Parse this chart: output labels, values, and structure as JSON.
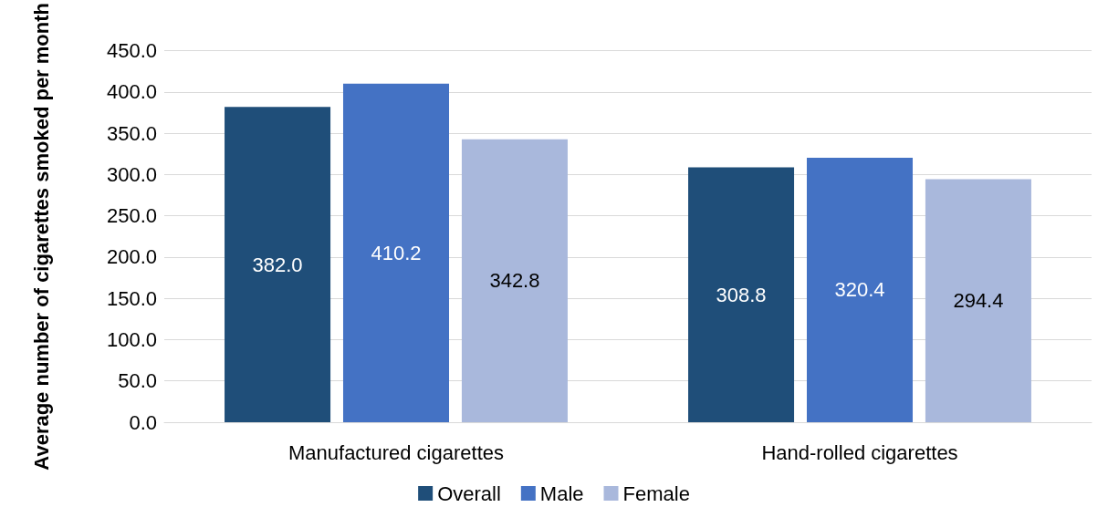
{
  "chart_data": {
    "type": "bar",
    "categories": [
      "Manufactured cigarettes",
      "Hand-rolled cigarettes"
    ],
    "ylabel": "Average number of cigarettes smoked per month",
    "ylim": [
      0,
      450
    ],
    "yticks": [
      {
        "value": 0,
        "label": "0.0"
      },
      {
        "value": 50,
        "label": "50.0"
      },
      {
        "value": 100,
        "label": "100.0"
      },
      {
        "value": 150,
        "label": "150.0"
      },
      {
        "value": 200,
        "label": "200.0"
      },
      {
        "value": 250,
        "label": "250.0"
      },
      {
        "value": 300,
        "label": "300.0"
      },
      {
        "value": 350,
        "label": "350.0"
      },
      {
        "value": 400,
        "label": "400.0"
      },
      {
        "value": 450,
        "label": "450.0"
      }
    ],
    "grid": "y",
    "legend": "bottom",
    "series": [
      {
        "name": "Overall",
        "color": "#1f4e79",
        "values": [
          382.0,
          308.8
        ],
        "value_labels": [
          "382.0",
          "308.8"
        ]
      },
      {
        "name": "Male",
        "color": "#4472c4",
        "values": [
          410.2,
          320.4
        ],
        "value_labels": [
          "410.2",
          "320.4"
        ]
      },
      {
        "name": "Female",
        "color": "#a9b8dc",
        "values": [
          342.8,
          294.4
        ],
        "value_labels": [
          "342.8",
          "294.4"
        ]
      }
    ]
  }
}
